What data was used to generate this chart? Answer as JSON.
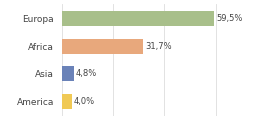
{
  "categories": [
    "America",
    "Asia",
    "Africa",
    "Europa"
  ],
  "values": [
    4.0,
    4.8,
    31.7,
    59.5
  ],
  "labels": [
    "4,0%",
    "4,8%",
    "31,7%",
    "59,5%"
  ],
  "bar_colors": [
    "#f0c955",
    "#6a82b8",
    "#e8a87c",
    "#a8bf8a"
  ],
  "background_color": "#ffffff",
  "xlim": [
    0,
    72
  ],
  "bar_height": 0.55,
  "label_fontsize": 6.0,
  "ytick_fontsize": 6.5,
  "grid_color": "#dddddd"
}
